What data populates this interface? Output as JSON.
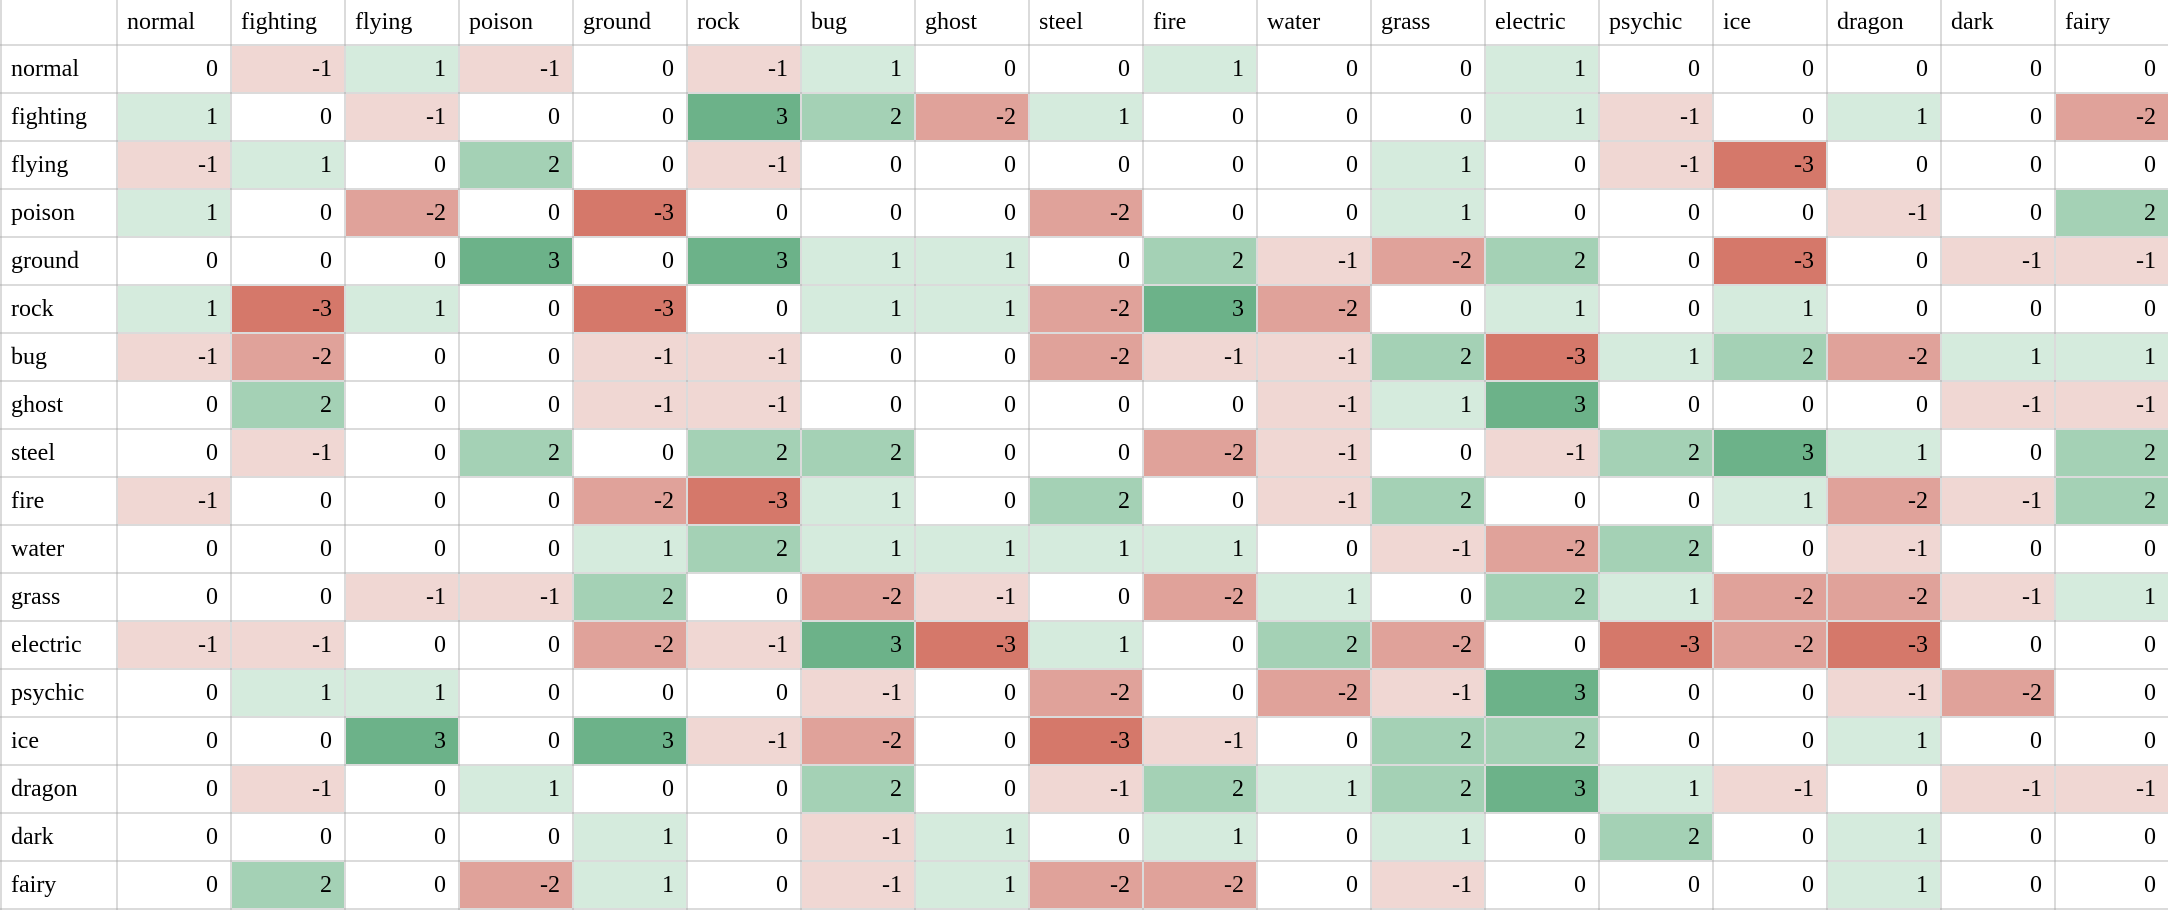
{
  "chart_data": {
    "type": "heatmap",
    "title": "",
    "corner_label": "",
    "columns": [
      "normal",
      "fighting",
      "flying",
      "poison",
      "ground",
      "rock",
      "bug",
      "ghost",
      "steel",
      "fire",
      "water",
      "grass",
      "electric",
      "psychic",
      "ice",
      "dragon",
      "dark",
      "fairy"
    ],
    "rows": [
      "normal",
      "fighting",
      "flying",
      "poison",
      "ground",
      "rock",
      "bug",
      "ghost",
      "steel",
      "fire",
      "water",
      "grass",
      "electric",
      "psychic",
      "ice",
      "dragon",
      "dark",
      "fairy"
    ],
    "values": [
      [
        0,
        -1,
        1,
        -1,
        0,
        -1,
        1,
        0,
        0,
        1,
        0,
        0,
        1,
        0,
        0,
        0,
        0,
        0
      ],
      [
        1,
        0,
        -1,
        0,
        0,
        3,
        2,
        -2,
        1,
        0,
        0,
        0,
        1,
        -1,
        0,
        1,
        0,
        -2
      ],
      [
        -1,
        1,
        0,
        2,
        0,
        -1,
        0,
        0,
        0,
        0,
        0,
        1,
        0,
        -1,
        -3,
        0,
        0,
        0
      ],
      [
        1,
        0,
        -2,
        0,
        -3,
        0,
        0,
        0,
        -2,
        0,
        0,
        1,
        0,
        0,
        0,
        -1,
        0,
        2
      ],
      [
        0,
        0,
        0,
        3,
        0,
        3,
        1,
        1,
        0,
        2,
        -1,
        -2,
        2,
        0,
        -3,
        0,
        -1,
        -1
      ],
      [
        1,
        -3,
        1,
        0,
        -3,
        0,
        1,
        1,
        -2,
        3,
        -2,
        0,
        1,
        0,
        1,
        0,
        0,
        0
      ],
      [
        -1,
        -2,
        0,
        0,
        -1,
        -1,
        0,
        0,
        -2,
        -1,
        -1,
        2,
        -3,
        1,
        2,
        -2,
        1,
        1
      ],
      [
        0,
        2,
        0,
        0,
        -1,
        -1,
        0,
        0,
        0,
        0,
        -1,
        1,
        3,
        0,
        0,
        0,
        -1,
        -1
      ],
      [
        0,
        -1,
        0,
        2,
        0,
        2,
        2,
        0,
        0,
        -2,
        -1,
        0,
        -1,
        2,
        3,
        1,
        0,
        2
      ],
      [
        -1,
        0,
        0,
        0,
        -2,
        -3,
        1,
        0,
        2,
        0,
        -1,
        2,
        0,
        0,
        1,
        -2,
        -1,
        2
      ],
      [
        0,
        0,
        0,
        0,
        1,
        2,
        1,
        1,
        1,
        1,
        0,
        -1,
        -2,
        2,
        0,
        -1,
        0,
        0
      ],
      [
        0,
        0,
        -1,
        -1,
        2,
        0,
        -2,
        -1,
        0,
        -2,
        1,
        0,
        2,
        1,
        -2,
        -2,
        -1,
        1
      ],
      [
        -1,
        -1,
        0,
        0,
        -2,
        -1,
        3,
        -3,
        1,
        0,
        2,
        -2,
        0,
        -3,
        -2,
        -3,
        0,
        0
      ],
      [
        0,
        1,
        1,
        0,
        0,
        0,
        -1,
        0,
        -2,
        0,
        -2,
        -1,
        3,
        0,
        0,
        -1,
        -2,
        0
      ],
      [
        0,
        0,
        3,
        0,
        3,
        -1,
        -2,
        0,
        -3,
        -1,
        0,
        2,
        2,
        0,
        0,
        1,
        0,
        0
      ],
      [
        0,
        -1,
        0,
        1,
        0,
        0,
        2,
        0,
        -1,
        2,
        1,
        2,
        3,
        1,
        -1,
        0,
        -1,
        -1
      ],
      [
        0,
        0,
        0,
        0,
        1,
        0,
        -1,
        1,
        0,
        1,
        0,
        1,
        0,
        2,
        0,
        1,
        0,
        0
      ],
      [
        0,
        2,
        0,
        -2,
        1,
        0,
        -1,
        1,
        -2,
        -2,
        0,
        -1,
        0,
        0,
        0,
        1,
        0,
        0
      ]
    ],
    "value_range": [
      -3,
      3
    ],
    "legend_position": "none",
    "grid": true,
    "cell_colors_by_value": {
      "-3": "#d5786a",
      "-2": "#e0a29a",
      "-1": "#f0d7d3",
      "0": "#ffffff",
      "1": "#d5ebdd",
      "2": "#a4d1b5",
      "3": "#6cb289"
    },
    "grid_color": "#dcdcdc",
    "text_color": "#000000"
  }
}
